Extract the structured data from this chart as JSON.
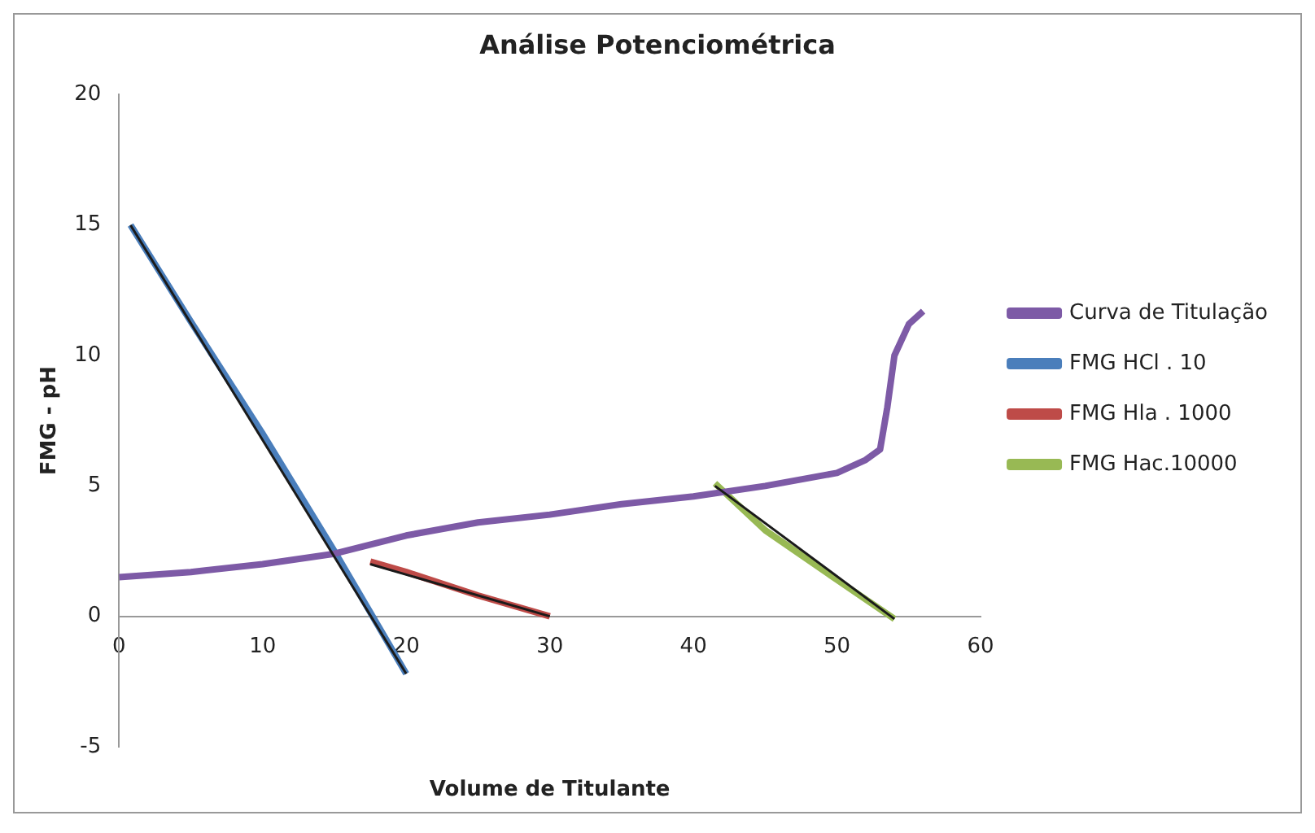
{
  "chart_data": {
    "type": "line",
    "title": "Análise Potenciométrica",
    "xlabel": "Volume de Titulante",
    "ylabel": "FMG - pH",
    "xlim": [
      0,
      60
    ],
    "xticks": [
      0,
      10,
      20,
      30,
      40,
      50,
      60
    ],
    "ylim": [
      -5,
      20
    ],
    "yticks": [
      -5,
      0,
      5,
      10,
      15,
      20
    ],
    "grid": false,
    "legend": "right",
    "marker": "none",
    "line_style": "solid",
    "series": [
      {
        "name": "Curva de Titulação",
        "color": "#7d5aa6",
        "x": [
          0,
          5,
          10,
          15,
          20,
          25,
          30,
          35,
          40,
          45,
          50,
          52,
          53,
          53.5,
          54,
          55,
          56
        ],
        "values": [
          1.5,
          1.7,
          2.0,
          2.4,
          3.1,
          3.6,
          3.9,
          4.3,
          4.6,
          5.0,
          5.5,
          6.0,
          6.4,
          8,
          10,
          11.2,
          11.7
        ]
      },
      {
        "name": "FMG HCl . 10",
        "color": "#4a7ebb",
        "x": [
          0.8,
          5,
          10,
          15,
          20
        ],
        "values": [
          15,
          11.3,
          7,
          2.5,
          -2.2
        ]
      },
      {
        "name": "FMG Hla . 1000",
        "color": "#be4b48",
        "x": [
          17.5,
          20,
          25,
          30
        ],
        "values": [
          2.1,
          1.7,
          0.8,
          0
        ]
      },
      {
        "name": "FMG Hac.10000",
        "color": "#98b954",
        "x": [
          41.5,
          45,
          50,
          54
        ],
        "values": [
          5.1,
          3.3,
          1.4,
          -0.1
        ]
      },
      {
        "type": "line",
        "color": "#1a1a1a",
        "x": [
          0.8,
          20
        ],
        "values": [
          15,
          -2.2
        ]
      },
      {
        "type": "line",
        "color": "#1a1a1a",
        "x": [
          17.5,
          30
        ],
        "values": [
          2.0,
          0
        ]
      },
      {
        "type": "line",
        "color": "#1a1a1a",
        "x": [
          41.5,
          54
        ],
        "values": [
          5.0,
          -0.1
        ]
      }
    ]
  }
}
